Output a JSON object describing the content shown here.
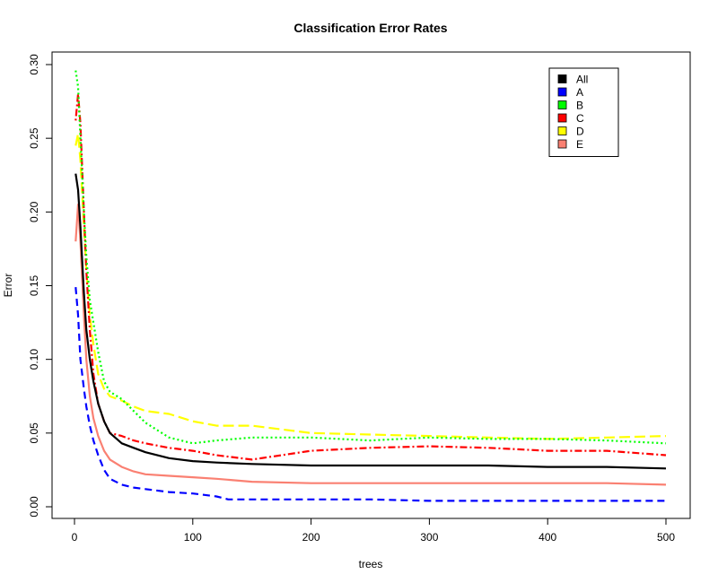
{
  "chart_data": {
    "type": "line",
    "title": "Classification Error Rates",
    "xlabel": "trees",
    "ylabel": "Error",
    "xlim": [
      0,
      500
    ],
    "ylim": [
      0,
      0.3
    ],
    "x_ticks": [
      0,
      100,
      200,
      300,
      400,
      500
    ],
    "x_tick_labels": [
      "0",
      "100",
      "200",
      "300",
      "400",
      "500"
    ],
    "y_ticks": [
      0,
      0.05,
      0.1,
      0.15,
      0.2,
      0.25,
      0.3
    ],
    "y_tick_labels": [
      "0.00",
      "0.05",
      "0.10",
      "0.15",
      "0.20",
      "0.25",
      "0.30"
    ],
    "grid": false,
    "legend_position": "top-right",
    "series": [
      {
        "name": "All",
        "color": "#000000",
        "dash": "solid",
        "x": [
          1,
          3,
          5,
          8,
          10,
          13,
          16,
          20,
          25,
          30,
          40,
          50,
          60,
          80,
          100,
          120,
          150,
          200,
          250,
          300,
          350,
          400,
          450,
          500
        ],
        "y": [
          0.226,
          0.215,
          0.19,
          0.145,
          0.12,
          0.1,
          0.085,
          0.07,
          0.058,
          0.05,
          0.043,
          0.04,
          0.037,
          0.033,
          0.031,
          0.03,
          0.029,
          0.028,
          0.028,
          0.028,
          0.028,
          0.027,
          0.027,
          0.026
        ]
      },
      {
        "name": "A",
        "color": "#0000ff",
        "dash": "dashed",
        "x": [
          1,
          3,
          5,
          8,
          10,
          13,
          16,
          20,
          25,
          30,
          40,
          50,
          60,
          80,
          100,
          120,
          130,
          150,
          200,
          250,
          300,
          350,
          400,
          450,
          500
        ],
        "y": [
          0.149,
          0.13,
          0.1,
          0.08,
          0.068,
          0.055,
          0.045,
          0.035,
          0.025,
          0.019,
          0.015,
          0.013,
          0.012,
          0.01,
          0.009,
          0.007,
          0.005,
          0.005,
          0.005,
          0.005,
          0.004,
          0.004,
          0.004,
          0.004,
          0.004
        ]
      },
      {
        "name": "B",
        "color": "#00ff00",
        "dash": "dotted",
        "x": [
          1,
          3,
          5,
          8,
          10,
          13,
          16,
          20,
          25,
          30,
          40,
          50,
          60,
          80,
          100,
          120,
          150,
          200,
          250,
          300,
          350,
          400,
          450,
          500
        ],
        "y": [
          0.296,
          0.285,
          0.25,
          0.2,
          0.17,
          0.14,
          0.125,
          0.105,
          0.085,
          0.078,
          0.073,
          0.065,
          0.057,
          0.047,
          0.043,
          0.045,
          0.047,
          0.047,
          0.045,
          0.047,
          0.046,
          0.046,
          0.045,
          0.043
        ]
      },
      {
        "name": "C",
        "color": "#ff0000",
        "dash": "dotdash",
        "x": [
          1,
          3,
          5,
          8,
          10,
          13,
          16,
          20,
          25,
          30,
          40,
          50,
          60,
          80,
          100,
          120,
          150,
          200,
          250,
          300,
          350,
          400,
          450,
          500
        ],
        "y": [
          0.262,
          0.28,
          0.26,
          0.2,
          0.16,
          0.12,
          0.09,
          0.07,
          0.058,
          0.05,
          0.048,
          0.045,
          0.043,
          0.04,
          0.038,
          0.035,
          0.032,
          0.038,
          0.04,
          0.041,
          0.04,
          0.038,
          0.038,
          0.035
        ]
      },
      {
        "name": "D",
        "color": "#ffff00",
        "dash": "longdash",
        "x": [
          1,
          3,
          5,
          8,
          10,
          13,
          16,
          20,
          25,
          30,
          40,
          50,
          60,
          80,
          100,
          120,
          150,
          200,
          250,
          300,
          350,
          400,
          450,
          500
        ],
        "y": [
          0.245,
          0.253,
          0.235,
          0.19,
          0.16,
          0.13,
          0.11,
          0.09,
          0.08,
          0.075,
          0.072,
          0.068,
          0.065,
          0.063,
          0.058,
          0.055,
          0.055,
          0.05,
          0.049,
          0.048,
          0.047,
          0.046,
          0.047,
          0.048
        ]
      },
      {
        "name": "E",
        "color": "#fa8072",
        "dash": "solid",
        "x": [
          1,
          3,
          5,
          8,
          10,
          13,
          16,
          20,
          25,
          30,
          40,
          50,
          60,
          80,
          100,
          120,
          150,
          200,
          250,
          300,
          350,
          400,
          450,
          500
        ],
        "y": [
          0.18,
          0.205,
          0.18,
          0.13,
          0.1,
          0.075,
          0.06,
          0.048,
          0.038,
          0.032,
          0.027,
          0.024,
          0.022,
          0.021,
          0.02,
          0.019,
          0.017,
          0.016,
          0.016,
          0.016,
          0.016,
          0.016,
          0.016,
          0.015
        ]
      }
    ]
  }
}
